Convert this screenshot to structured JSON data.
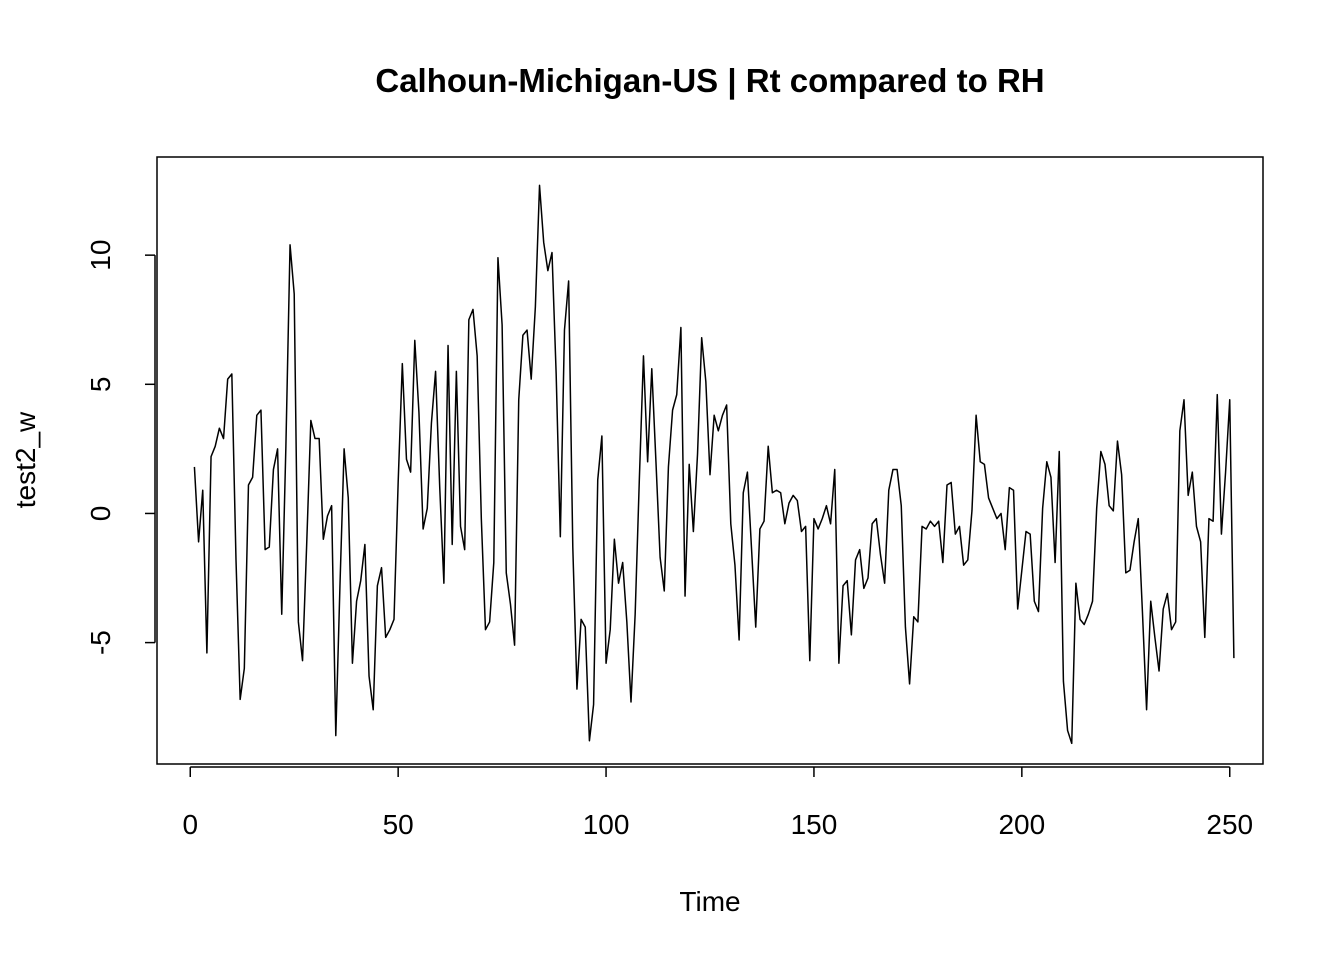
{
  "chart_data": {
    "type": "line",
    "title": "Calhoun-Michigan-US | Rt compared to RH",
    "xlabel": "Time",
    "ylabel": "test2_w",
    "xlim": [
      -8,
      258
    ],
    "ylim": [
      -9.7,
      13.8
    ],
    "x_ticks": [
      0,
      50,
      100,
      150,
      200,
      250
    ],
    "y_ticks": [
      -5,
      0,
      5,
      10
    ],
    "grid": false,
    "legend": "none",
    "line_color": "#000000",
    "x_start": 1,
    "series": [
      {
        "values": [
          1.8,
          -1.1,
          0.9,
          -5.4,
          2.2,
          2.6,
          3.3,
          2.9,
          5.2,
          5.4,
          -1.8,
          -7.2,
          -6.0,
          1.1,
          1.4,
          3.8,
          4.0,
          -1.4,
          -1.3,
          1.7,
          2.5,
          -3.9,
          2.6,
          10.4,
          8.5,
          -4.2,
          -5.7,
          -1.2,
          3.6,
          2.9,
          2.9,
          -1.0,
          -0.1,
          0.3,
          -8.6,
          -2.8,
          2.5,
          0.6,
          -5.8,
          -3.4,
          -2.6,
          -1.2,
          -6.3,
          -7.6,
          -2.8,
          -2.1,
          -4.8,
          -4.5,
          -4.1,
          1.2,
          5.8,
          2.1,
          1.6,
          6.7,
          3.9,
          -0.6,
          0.2,
          3.5,
          5.5,
          1.0,
          -2.7,
          6.5,
          -1.2,
          5.5,
          -0.5,
          -1.4,
          7.5,
          7.9,
          6.1,
          -0.2,
          -4.5,
          -4.2,
          -1.9,
          9.9,
          7.3,
          -2.3,
          -3.5,
          -5.1,
          4.4,
          6.9,
          7.1,
          5.2,
          8.0,
          12.7,
          10.5,
          9.4,
          10.1,
          5.4,
          -0.9,
          7.1,
          9.0,
          -1.3,
          -6.8,
          -4.1,
          -4.4,
          -8.8,
          -7.4,
          1.3,
          3.0,
          -5.8,
          -4.5,
          -1.0,
          -2.7,
          -1.9,
          -4.2,
          -7.3,
          -3.9,
          1.3,
          6.1,
          2.0,
          5.6,
          2.0,
          -1.7,
          -3.0,
          1.8,
          4.0,
          4.6,
          7.2,
          -3.2,
          1.9,
          -0.7,
          2.3,
          6.8,
          5.1,
          1.5,
          3.8,
          3.2,
          3.8,
          4.2,
          -0.4,
          -2.0,
          -4.9,
          0.8,
          1.6,
          -1.4,
          -4.4,
          -0.6,
          -0.3,
          2.6,
          0.8,
          0.9,
          0.8,
          -0.4,
          0.4,
          0.7,
          0.5,
          -0.7,
          -0.5,
          -5.7,
          -0.2,
          -0.6,
          -0.2,
          0.3,
          -0.4,
          1.7,
          -5.8,
          -2.8,
          -2.6,
          -4.7,
          -1.8,
          -1.4,
          -2.9,
          -2.5,
          -0.4,
          -0.2,
          -1.6,
          -2.7,
          0.9,
          1.7,
          1.7,
          0.3,
          -4.4,
          -6.6,
          -4.0,
          -4.2,
          -0.5,
          -0.6,
          -0.3,
          -0.5,
          -0.3,
          -1.9,
          1.1,
          1.2,
          -0.8,
          -0.5,
          -2.0,
          -1.8,
          0.1,
          3.8,
          2.0,
          1.9,
          0.6,
          0.2,
          -0.2,
          0.0,
          -1.4,
          1.0,
          0.9,
          -3.7,
          -2.2,
          -0.7,
          -0.8,
          -3.4,
          -3.8,
          0.2,
          2.0,
          1.4,
          -1.9,
          2.4,
          -6.5,
          -8.4,
          -8.9,
          -2.7,
          -4.1,
          -4.3,
          -3.9,
          -3.4,
          0.2,
          2.4,
          1.9,
          0.3,
          0.1,
          2.8,
          1.5,
          -2.3,
          -2.2,
          -1.1,
          -0.2,
          -3.8,
          -7.6,
          -3.4,
          -4.8,
          -6.1,
          -3.7,
          -3.1,
          -4.5,
          -4.2,
          3.2,
          4.4,
          0.7,
          1.6,
          -0.5,
          -1.1,
          -4.8,
          -0.2,
          -0.3,
          4.6,
          -0.8,
          1.6,
          4.4,
          -5.6
        ]
      }
    ]
  }
}
